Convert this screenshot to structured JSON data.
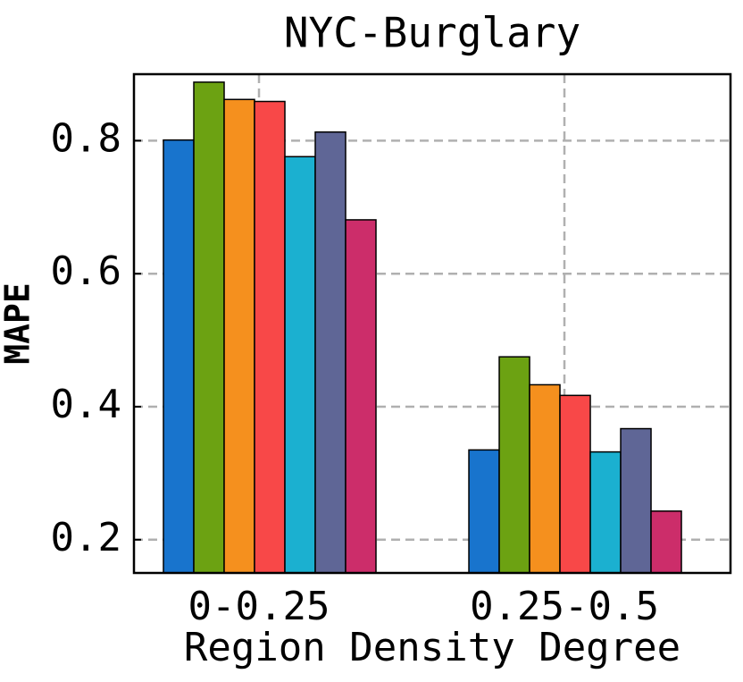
{
  "chart_data": {
    "type": "bar",
    "title": "NYC-Burglary",
    "x_label": "Region Density Degree",
    "y_label": "MAPE",
    "categories": [
      "0-0.25",
      "0.25-0.5"
    ],
    "series": [
      {
        "color": "#1874cd",
        "values": [
          0.801,
          0.335
        ]
      },
      {
        "color": "#6ca212",
        "values": [
          0.888,
          0.475
        ]
      },
      {
        "color": "#f5901e",
        "values": [
          0.862,
          0.433
        ]
      },
      {
        "color": "#f84848",
        "values": [
          0.859,
          0.417
        ]
      },
      {
        "color": "#1bb0d0",
        "values": [
          0.776,
          0.332
        ]
      },
      {
        "color": "#5f6696",
        "values": [
          0.813,
          0.367
        ]
      },
      {
        "color": "#cc2d6a",
        "values": [
          0.681,
          0.243
        ]
      }
    ],
    "ylim": [
      0.15,
      0.9
    ],
    "yticks": [
      0.2,
      0.4,
      0.6,
      0.8
    ],
    "grid": true
  }
}
